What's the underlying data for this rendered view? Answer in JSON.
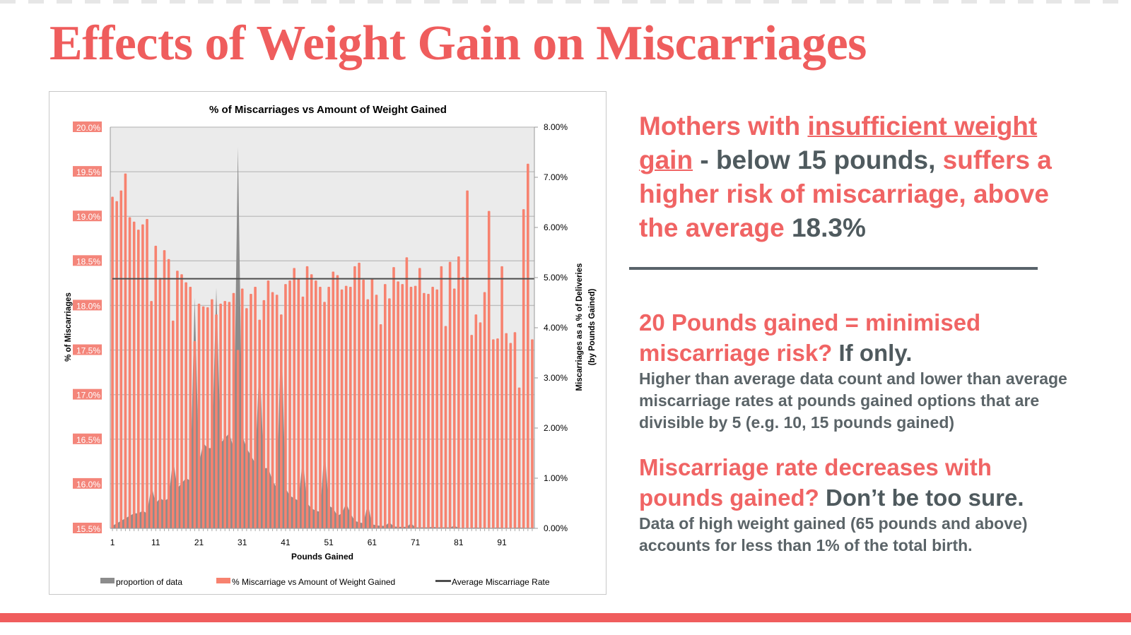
{
  "slide": {
    "title": "Effects of Weight Gain on Miscarriages",
    "colors": {
      "accent": "#ef5d5d",
      "dark_text": "#4f5a5e",
      "bar": "#f7826f",
      "area": "#8c8c8c",
      "avg_line": "#4d4d4d",
      "plot_bg": "#ebebeb"
    }
  },
  "right_panel": {
    "block1": {
      "part1": "Mothers with ",
      "part2": "insufficient weight gain",
      "part3": " - below 15 pounds, ",
      "part4": "suffers a higher risk of miscarriage, above the average ",
      "part5": "18.3%"
    },
    "block2": {
      "heading_accent": "20 Pounds gained = minimised miscarriage risk?",
      "heading_dark": " If only.",
      "body": "Higher than average data count and lower than average miscarriage rates at pounds gained options that are divisible by 5 (e.g. 10, 15 pounds gained)"
    },
    "block3": {
      "heading_accent": "Miscarriage rate decreases with pounds gained?",
      "heading_dark": " Don’t be too sure.",
      "body": "Data of high weight gained (65 pounds and above) accounts for less than 1% of the total birth."
    }
  },
  "chart_data": {
    "type": "bar",
    "title": "% of Miscarriages vs Amount of Weight Gained",
    "xlabel": "Pounds Gained",
    "ylabel": "% of Miscarriages",
    "y2label_line1": "Miscarriages as a % of Deliveries",
    "y2label_line2": "(by Pounds Gained)",
    "ylim": [
      15.5,
      20.0
    ],
    "y2lim": [
      0,
      8
    ],
    "yticks": [
      "15.5%",
      "16.0%",
      "16.5%",
      "17.0%",
      "17.5%",
      "18.0%",
      "18.5%",
      "19.0%",
      "19.5%",
      "20.0%"
    ],
    "y2ticks": [
      "0.00%",
      "1.00%",
      "2.00%",
      "3.00%",
      "4.00%",
      "5.00%",
      "6.00%",
      "7.00%",
      "8.00%"
    ],
    "xticks": [
      "1",
      "11",
      "21",
      "31",
      "41",
      "51",
      "61",
      "71",
      "81",
      "91"
    ],
    "x_range": [
      1,
      98
    ],
    "grid": true,
    "legend_position": "bottom",
    "legend": [
      "proportion of data",
      "% Miscarriage vs Amount of Weight Gained",
      "Average Miscarriage Rate"
    ],
    "average_miscarriage_rate": 18.3,
    "series": [
      {
        "name": "% Miscarriage vs Amount of Weight Gained",
        "type": "bar",
        "axis": "left",
        "values": [
          19.22,
          19.17,
          19.29,
          19.48,
          18.99,
          18.94,
          18.85,
          18.91,
          18.97,
          18.05,
          18.67,
          18.31,
          18.62,
          18.52,
          17.83,
          18.39,
          18.35,
          18.26,
          18.21,
          17.6,
          18.02,
          17.99,
          17.98,
          18.07,
          17.9,
          18.02,
          18.05,
          18.04,
          18.14,
          17.5,
          18.19,
          17.97,
          18.13,
          18.21,
          17.84,
          18.06,
          18.28,
          18.15,
          18.12,
          17.9,
          18.24,
          18.28,
          18.42,
          18.3,
          18.1,
          18.44,
          18.35,
          18.28,
          18.21,
          18.04,
          18.21,
          18.38,
          18.34,
          18.18,
          18.22,
          18.21,
          18.44,
          18.48,
          18.29,
          18.07,
          18.3,
          18.12,
          17.79,
          18.24,
          18.08,
          18.43,
          18.27,
          18.24,
          18.54,
          18.21,
          18.22,
          18.42,
          18.14,
          18.13,
          18.21,
          18.18,
          18.44,
          17.77,
          18.49,
          18.19,
          18.55,
          18.32,
          19.29,
          17.67,
          17.9,
          17.81,
          18.15,
          19.06,
          17.62,
          17.63,
          18.44,
          17.69,
          17.58,
          17.7,
          17.08,
          19.08,
          19.59,
          17.62
        ]
      },
      {
        "name": "proportion of data",
        "type": "area",
        "axis": "right",
        "values": [
          0.05,
          0.1,
          0.15,
          0.2,
          0.25,
          0.3,
          0.3,
          0.35,
          0.3,
          0.85,
          0.5,
          0.6,
          0.55,
          0.6,
          1.4,
          0.8,
          0.9,
          1.0,
          0.95,
          4.6,
          1.3,
          1.7,
          1.6,
          1.6,
          4.8,
          1.7,
          1.8,
          1.9,
          1.6,
          7.6,
          1.85,
          1.6,
          1.45,
          1.3,
          3.4,
          1.2,
          1.2,
          0.95,
          0.8,
          4.0,
          0.8,
          0.65,
          0.6,
          0.55,
          1.4,
          0.5,
          0.4,
          0.35,
          0.33,
          1.6,
          0.45,
          0.4,
          0.25,
          0.3,
          0.5,
          0.3,
          0.15,
          0.12,
          0.1,
          0.5,
          0.08,
          0.06,
          0.05,
          0.05,
          0.12,
          0.04,
          0.03,
          0.03,
          0.03,
          0.1,
          0.02,
          0.02,
          0.02,
          0.02,
          0.03,
          0.02,
          0.02,
          0.02,
          0.02,
          0.05,
          0.01,
          0.01,
          0.01,
          0.01,
          0.02,
          0.01,
          0.01,
          0.01,
          0.01,
          0.02,
          0.01,
          0.01,
          0.01,
          0.01,
          0.02,
          0.01,
          0.01,
          0.01
        ]
      },
      {
        "name": "Average Miscarriage Rate",
        "type": "line",
        "axis": "left",
        "value": 18.3
      }
    ]
  }
}
